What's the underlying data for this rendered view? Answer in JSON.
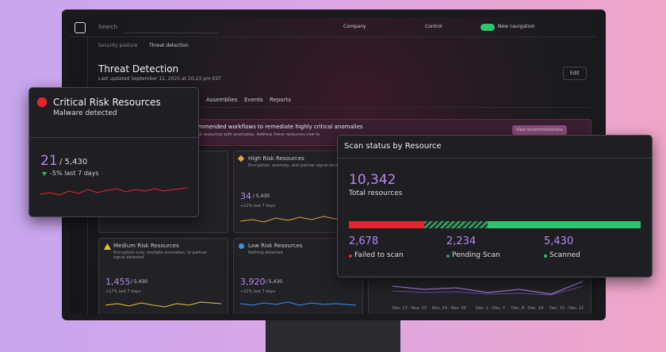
{
  "topbar": {
    "search": "Search",
    "company_label": "Company",
    "control_label": "Control",
    "toggle_label": "New navigation"
  },
  "breadcrumb": [
    "Security posture",
    "Threat detection"
  ],
  "header": {
    "title": "Threat Detection",
    "updated": "Last updated September 12, 2025 at 10:23 pm EST",
    "edit": "Edit"
  },
  "tabs": [
    "Assemblies",
    "Events",
    "Reports"
  ],
  "banner": {
    "text": "Recommended workflows to remediate highly critical anomalies",
    "subtext": "High risk resources with anomalies. Address these resources now to",
    "button": "View recommendations"
  },
  "cards": [
    {
      "title": "High Risk Resources",
      "desc": "Encryption, anomaly, and partner signal detected",
      "count": "34",
      "total": "/ 5,430",
      "trend": "+12% last 7 days"
    },
    {
      "title": "Medium Risk Resources",
      "desc": "Encryption only, multiple anomalies, or partner signal detected",
      "count": "1,455",
      "total": "/ 5,430",
      "trend": "+17% last 7 days"
    },
    {
      "title": "Low Risk Resources",
      "desc": "Nothing detected",
      "count": "3,920",
      "total": "/ 5,430",
      "trend": "+32% last 7 days"
    }
  ],
  "week_labels": [
    "Nov. 17 - Nov. 23",
    "Nov. 24 - Nov. 30",
    "Dec. 1 - Dec. 7",
    "Dec. 8 - Dec. 14",
    "Dec. 15 - Dec. 21"
  ],
  "critical": {
    "title": "Critical Risk Resources",
    "subtitle": "Malware detected",
    "count": "21",
    "total": "/ 5,430",
    "trend": "-5% last 7 days"
  },
  "scan": {
    "title": "Scan status by Resource",
    "total": "10,342",
    "total_label": "Total resources",
    "counts": [
      {
        "value": 2678,
        "label": "2,678",
        "name": "Failed to scan",
        "color": "#e3262b"
      },
      {
        "value": 2234,
        "label": "2,234",
        "name": "Pending Scan",
        "color": "#2f9a5c"
      },
      {
        "value": 5430,
        "label": "5,430",
        "name": "Scanned",
        "color": "#2fc46e"
      }
    ]
  }
}
